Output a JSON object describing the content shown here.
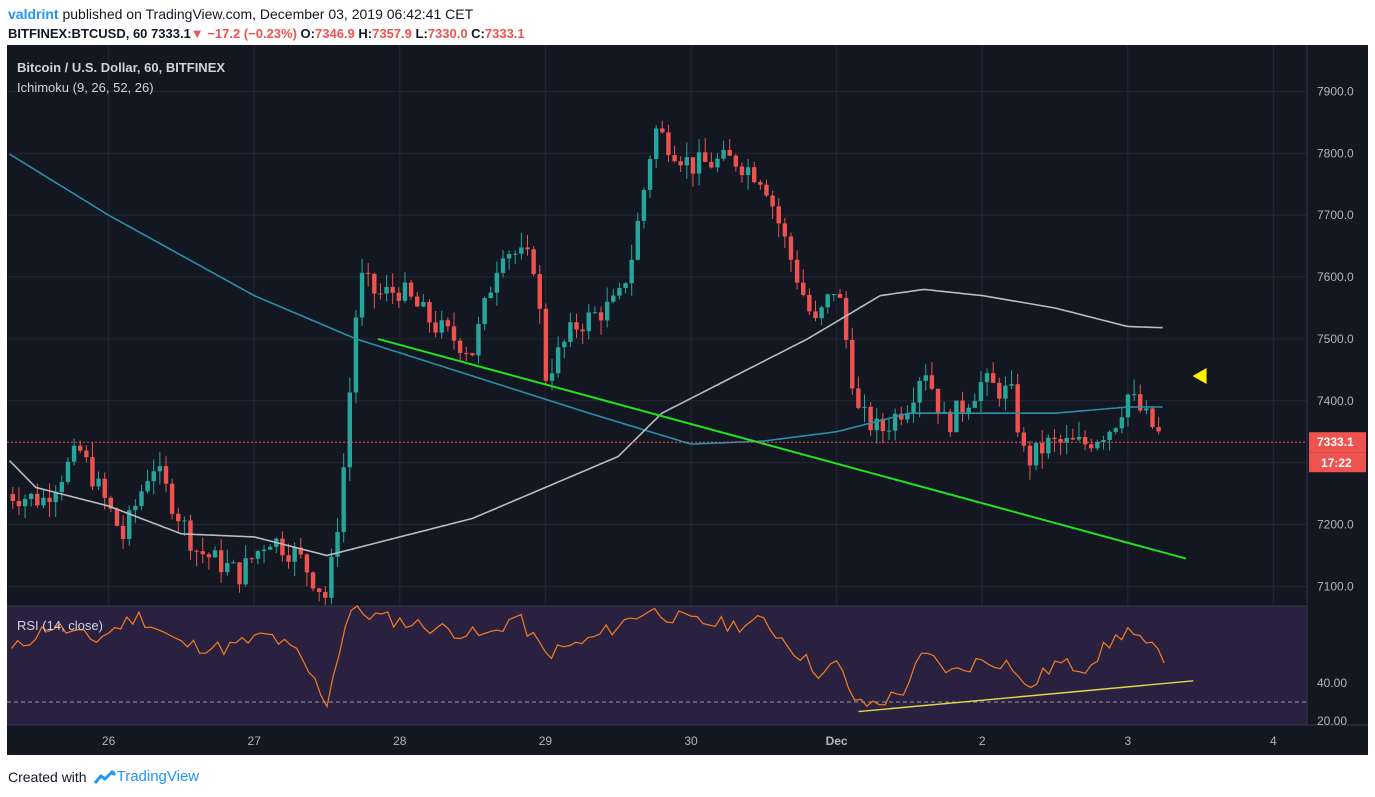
{
  "header": {
    "author": "valdrint",
    "published": " published on TradingView.com, December 03, 2019 06:42:41 CET",
    "symbol": "BITFINEX:BTCUSD, 60",
    "price": "7333.1",
    "arrow": "▼",
    "change": "−17.2 (−0.23%)",
    "o_label": "O:",
    "o": "7346.9",
    "h_label": "H:",
    "h": "7357.9",
    "l_label": "L:",
    "l": "7330.0",
    "c_label": "C:",
    "c": "7333.1"
  },
  "footer": {
    "created_with": "Created with",
    "brand": "TradingView"
  },
  "colors": {
    "background": "#131722",
    "up": "#26a69a",
    "down": "#ef5350",
    "ma_slow": "#2a8fa8",
    "ma_fast": "#b9bcc3",
    "trend_green": "#22e022",
    "trend_yellow": "#e6d44a",
    "rsi": "#f57c20",
    "rsi_band": "#2a2140",
    "marker": "#ffee00"
  },
  "chart_data": [
    {
      "type": "candlestick",
      "title": "Bitcoin / U.S. Dollar, 60, BITFINEX",
      "indicator": "Ichimoku (9, 26, 52, 26)",
      "x_ticks": [
        "26",
        "27",
        "28",
        "29",
        "30",
        "Dec",
        "2",
        "3",
        "4"
      ],
      "y_ticks": [
        "7100.0",
        "7200.0",
        "7300.0",
        "7400.0",
        "7500.0",
        "7600.0",
        "7700.0",
        "7800.0",
        "7900.0"
      ],
      "ylim": [
        7070,
        7975
      ],
      "last_price_label": "7333.1",
      "countdown_label": "17:22",
      "last_price": 7333.1,
      "anchors": [
        {
          "d": 25.3,
          "p": 7250
        },
        {
          "d": 25.55,
          "p": 7240
        },
        {
          "d": 25.8,
          "p": 7320
        },
        {
          "d": 26.1,
          "p": 7180
        },
        {
          "d": 26.3,
          "p": 7300
        },
        {
          "d": 26.6,
          "p": 7160
        },
        {
          "d": 26.9,
          "p": 7120
        },
        {
          "d": 27.1,
          "p": 7180
        },
        {
          "d": 27.3,
          "p": 7150
        },
        {
          "d": 27.5,
          "p": 7080
        },
        {
          "d": 27.6,
          "p": 7250
        },
        {
          "d": 27.72,
          "p": 7600
        },
        {
          "d": 27.85,
          "p": 7570
        },
        {
          "d": 28.0,
          "p": 7580
        },
        {
          "d": 28.25,
          "p": 7520
        },
        {
          "d": 28.5,
          "p": 7480
        },
        {
          "d": 28.7,
          "p": 7650
        },
        {
          "d": 28.93,
          "p": 7620
        },
        {
          "d": 29.0,
          "p": 7440
        },
        {
          "d": 29.2,
          "p": 7520
        },
        {
          "d": 29.5,
          "p": 7560
        },
        {
          "d": 29.6,
          "p": 7640
        },
        {
          "d": 29.75,
          "p": 7840
        },
        {
          "d": 30.0,
          "p": 7780
        },
        {
          "d": 30.3,
          "p": 7790
        },
        {
          "d": 30.5,
          "p": 7760
        },
        {
          "d": 30.7,
          "p": 7620
        },
        {
          "d": 30.85,
          "p": 7520
        },
        {
          "d": 31.0,
          "p": 7590
        },
        {
          "d": 31.15,
          "p": 7380
        },
        {
          "d": 31.3,
          "p": 7350
        },
        {
          "d": 31.5,
          "p": 7400
        },
        {
          "d": 31.6,
          "p": 7460
        },
        {
          "d": 31.75,
          "p": 7360
        },
        {
          "d": 32.0,
          "p": 7430
        },
        {
          "d": 32.2,
          "p": 7410
        },
        {
          "d": 32.3,
          "p": 7300
        },
        {
          "d": 32.45,
          "p": 7330
        },
        {
          "d": 32.7,
          "p": 7330
        },
        {
          "d": 32.9,
          "p": 7360
        },
        {
          "d": 33.0,
          "p": 7410
        },
        {
          "d": 33.1,
          "p": 7380
        },
        {
          "d": 33.25,
          "p": 7333
        }
      ],
      "ma_slow": [
        {
          "d": 25.0,
          "p": 7845
        },
        {
          "d": 26.0,
          "p": 7700
        },
        {
          "d": 27.0,
          "p": 7570
        },
        {
          "d": 27.7,
          "p": 7500
        },
        {
          "d": 28.5,
          "p": 7440
        },
        {
          "d": 29.3,
          "p": 7380
        },
        {
          "d": 30.0,
          "p": 7330
        },
        {
          "d": 30.5,
          "p": 7335
        },
        {
          "d": 31.0,
          "p": 7350
        },
        {
          "d": 31.5,
          "p": 7380
        },
        {
          "d": 32.0,
          "p": 7380
        },
        {
          "d": 32.5,
          "p": 7380
        },
        {
          "d": 33.0,
          "p": 7390
        },
        {
          "d": 33.25,
          "p": 7390
        }
      ],
      "ma_fast": [
        {
          "d": 25.0,
          "p": 7380
        },
        {
          "d": 25.5,
          "p": 7260
        },
        {
          "d": 26.0,
          "p": 7230
        },
        {
          "d": 26.5,
          "p": 7185
        },
        {
          "d": 27.0,
          "p": 7180
        },
        {
          "d": 27.5,
          "p": 7150
        },
        {
          "d": 28.0,
          "p": 7180
        },
        {
          "d": 28.5,
          "p": 7210
        },
        {
          "d": 29.0,
          "p": 7260
        },
        {
          "d": 29.5,
          "p": 7310
        },
        {
          "d": 29.8,
          "p": 7380
        },
        {
          "d": 30.3,
          "p": 7440
        },
        {
          "d": 30.8,
          "p": 7500
        },
        {
          "d": 31.3,
          "p": 7570
        },
        {
          "d": 31.6,
          "p": 7580
        },
        {
          "d": 32.0,
          "p": 7570
        },
        {
          "d": 32.5,
          "p": 7550
        },
        {
          "d": 33.0,
          "p": 7520
        },
        {
          "d": 33.25,
          "p": 7518
        }
      ],
      "trendline": {
        "from": {
          "d": 27.85,
          "p": 7500
        },
        "to": {
          "d": 33.4,
          "p": 7145
        }
      },
      "marker": {
        "d": 33.5,
        "p": 7440
      }
    },
    {
      "type": "line",
      "title": "RSI (14, close)",
      "y_ticks": [
        "20.00",
        "40.00"
      ],
      "ylim": [
        18,
        80
      ],
      "series": [
        {
          "values": [
            {
              "d": 25.0,
              "p": 40
            },
            {
              "d": 25.3,
              "p": 55
            },
            {
              "d": 25.6,
              "p": 70
            },
            {
              "d": 25.9,
              "p": 62
            },
            {
              "d": 26.2,
              "p": 75
            },
            {
              "d": 26.5,
              "p": 60
            },
            {
              "d": 26.8,
              "p": 58
            },
            {
              "d": 27.1,
              "p": 65
            },
            {
              "d": 27.3,
              "p": 55
            },
            {
              "d": 27.5,
              "p": 30
            },
            {
              "d": 27.65,
              "p": 78
            },
            {
              "d": 28.0,
              "p": 72
            },
            {
              "d": 28.3,
              "p": 68
            },
            {
              "d": 28.6,
              "p": 64
            },
            {
              "d": 28.8,
              "p": 75
            },
            {
              "d": 29.0,
              "p": 55
            },
            {
              "d": 29.3,
              "p": 62
            },
            {
              "d": 29.5,
              "p": 70
            },
            {
              "d": 29.7,
              "p": 78
            },
            {
              "d": 30.0,
              "p": 72
            },
            {
              "d": 30.3,
              "p": 70
            },
            {
              "d": 30.5,
              "p": 72
            },
            {
              "d": 30.7,
              "p": 58
            },
            {
              "d": 30.9,
              "p": 44
            },
            {
              "d": 31.0,
              "p": 50
            },
            {
              "d": 31.15,
              "p": 28
            },
            {
              "d": 31.3,
              "p": 30
            },
            {
              "d": 31.45,
              "p": 35
            },
            {
              "d": 31.6,
              "p": 55
            },
            {
              "d": 31.8,
              "p": 45
            },
            {
              "d": 32.0,
              "p": 52
            },
            {
              "d": 32.2,
              "p": 50
            },
            {
              "d": 32.3,
              "p": 36
            },
            {
              "d": 32.5,
              "p": 50
            },
            {
              "d": 32.7,
              "p": 48
            },
            {
              "d": 32.9,
              "p": 62
            },
            {
              "d": 33.0,
              "p": 68
            },
            {
              "d": 33.1,
              "p": 60
            },
            {
              "d": 33.25,
              "p": 54
            }
          ]
        }
      ],
      "oversold_level": 30,
      "trendline": {
        "from": {
          "d": 31.15,
          "p": 25
        },
        "to": {
          "d": 33.45,
          "p": 41
        }
      }
    }
  ]
}
